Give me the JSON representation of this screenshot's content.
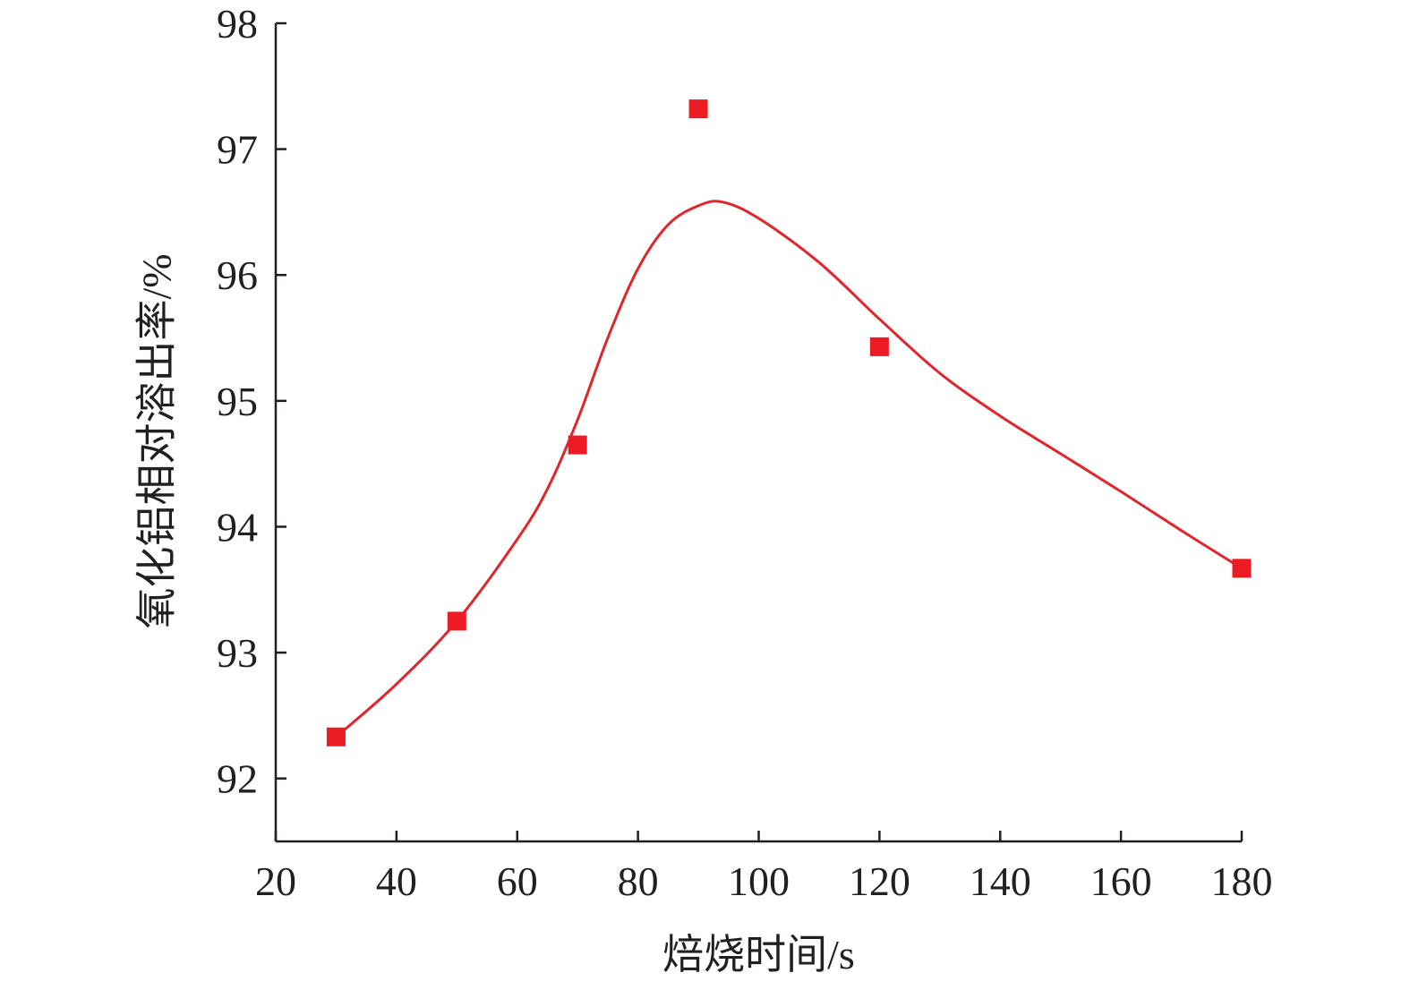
{
  "chart_data": {
    "type": "scatter",
    "title": "",
    "xlabel": "焙烧时间/s",
    "ylabel": "氧化铝相对溶出率/%",
    "xlim": [
      20,
      180
    ],
    "ylim": [
      91.5,
      98
    ],
    "xticks": [
      20,
      40,
      60,
      80,
      100,
      120,
      140,
      160,
      180
    ],
    "yticks": [
      92,
      93,
      94,
      95,
      96,
      97,
      98
    ],
    "grid": false,
    "legend": "none",
    "series": [
      {
        "kind": "scatter",
        "marker": "square",
        "color": "#ed1c24",
        "x": [
          30,
          50,
          70,
          90,
          120,
          180
        ],
        "y": [
          92.33,
          93.25,
          94.65,
          97.32,
          95.43,
          93.67
        ]
      },
      {
        "kind": "fitted-curve",
        "color": "#e0262b",
        "x": [
          30,
          40,
          50,
          60,
          65,
          70,
          75,
          80,
          85,
          90,
          94,
          100,
          110,
          120,
          130,
          140,
          150,
          160,
          170,
          180
        ],
        "y": [
          92.33,
          92.75,
          93.25,
          93.9,
          94.3,
          94.85,
          95.5,
          96.05,
          96.4,
          96.55,
          96.58,
          96.45,
          96.1,
          95.65,
          95.22,
          94.88,
          94.58,
          94.28,
          93.97,
          93.67
        ]
      }
    ]
  }
}
